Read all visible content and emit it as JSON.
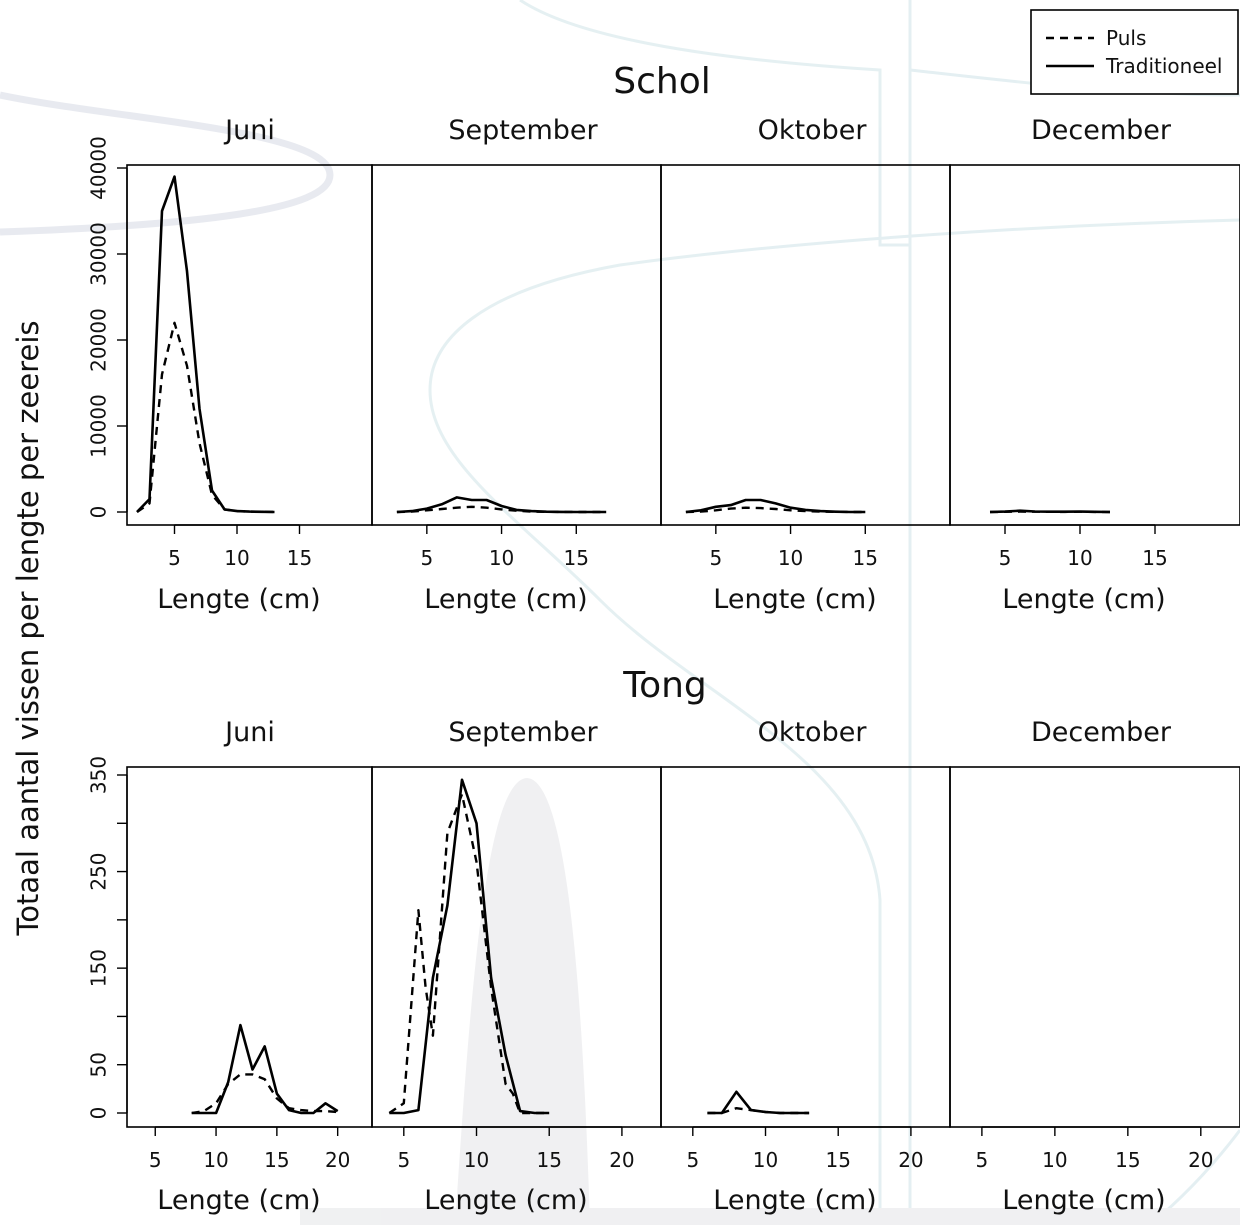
{
  "y_label": "Totaal aantal vissen per lengte per  zeereis",
  "legend": [
    {
      "name": "Puls",
      "style": "dashed"
    },
    {
      "name": "Traditioneel",
      "style": "solid"
    }
  ],
  "groups": [
    {
      "title": "Schol",
      "x_label": "Lengte (cm)",
      "xlim": [
        2,
        20
      ],
      "ylim": [
        0,
        40000
      ],
      "x_ticks": [
        5,
        10,
        15
      ],
      "y_ticks": [
        0,
        10000,
        20000,
        30000,
        40000
      ],
      "y_tick_labels": [
        "0",
        "10000",
        "20000",
        "30000",
        "40000"
      ]
    },
    {
      "title": "Tong",
      "x_label": "Lengte (cm)",
      "xlim": [
        3.5,
        22
      ],
      "ylim": [
        0,
        350
      ],
      "x_ticks": [
        5,
        10,
        15,
        20
      ],
      "y_ticks": [
        0,
        50,
        100,
        150,
        200,
        250,
        300,
        350
      ],
      "y_tick_labels": [
        "0",
        "50",
        "",
        "150",
        "",
        "250",
        "",
        "350"
      ]
    }
  ],
  "chart_data": [
    {
      "type": "line",
      "title": "Schol",
      "xlabel": "Lengte (cm)",
      "ylabel": "Totaal aantal vissen per lengte per  zeereis",
      "ylim": [
        0,
        40000
      ],
      "panels": [
        {
          "title": "Juni",
          "series": [
            {
              "name": "Puls",
              "x": [
                2,
                3,
                4,
                5,
                6,
                7,
                8,
                9,
                10,
                11,
                12,
                13
              ],
              "y": [
                0,
                1000,
                16000,
                22000,
                17000,
                8000,
                2000,
                300,
                100,
                50,
                20,
                0
              ]
            },
            {
              "name": "Traditioneel",
              "x": [
                2,
                3,
                4,
                5,
                6,
                7,
                8,
                9,
                10,
                11,
                12,
                13
              ],
              "y": [
                0,
                1500,
                35000,
                39000,
                28000,
                12000,
                2500,
                300,
                100,
                50,
                20,
                0
              ]
            }
          ]
        },
        {
          "title": "September",
          "series": [
            {
              "name": "Puls",
              "x": [
                3,
                4,
                5,
                6,
                7,
                8,
                9,
                10,
                11,
                12,
                13,
                14,
                15,
                16,
                17
              ],
              "y": [
                0,
                50,
                200,
                350,
                500,
                600,
                500,
                300,
                150,
                50,
                20,
                10,
                5,
                0,
                0
              ]
            },
            {
              "name": "Traditioneel",
              "x": [
                3,
                4,
                5,
                6,
                7,
                8,
                9,
                10,
                11,
                12,
                13,
                14,
                15,
                16,
                17
              ],
              "y": [
                0,
                100,
                400,
                900,
                1700,
                1400,
                1400,
                700,
                250,
                100,
                30,
                10,
                5,
                0,
                0
              ]
            }
          ]
        },
        {
          "title": "Oktober",
          "series": [
            {
              "name": "Puls",
              "x": [
                3,
                4,
                5,
                6,
                7,
                8,
                9,
                10,
                11,
                12,
                13,
                14,
                15
              ],
              "y": [
                0,
                50,
                200,
                400,
                500,
                450,
                350,
                200,
                100,
                50,
                20,
                0,
                0
              ]
            },
            {
              "name": "Traditioneel",
              "x": [
                3,
                4,
                5,
                6,
                7,
                8,
                9,
                10,
                11,
                12,
                13,
                14,
                15
              ],
              "y": [
                0,
                200,
                600,
                800,
                1400,
                1400,
                1000,
                500,
                250,
                100,
                30,
                0,
                0
              ]
            }
          ]
        },
        {
          "title": "December",
          "series": [
            {
              "name": "Puls",
              "x": [
                4,
                5,
                6,
                7,
                8,
                9,
                10,
                11,
                12
              ],
              "y": [
                0,
                20,
                50,
                30,
                20,
                10,
                30,
                10,
                0
              ]
            },
            {
              "name": "Traditioneel",
              "x": [
                4,
                5,
                6,
                7,
                8,
                9,
                10,
                11,
                12
              ],
              "y": [
                0,
                50,
                150,
                60,
                40,
                30,
                50,
                20,
                0
              ]
            }
          ]
        }
      ]
    },
    {
      "type": "line",
      "title": "Tong",
      "xlabel": "Lengte (cm)",
      "ylabel": "Totaal aantal vissen per lengte per  zeereis",
      "ylim": [
        0,
        350
      ],
      "panels": [
        {
          "title": "Juni",
          "series": [
            {
              "name": "Puls",
              "x": [
                8,
                9,
                10,
                11,
                12,
                13,
                14,
                15,
                16,
                17,
                18,
                19,
                20
              ],
              "y": [
                0,
                2,
                10,
                30,
                40,
                40,
                35,
                15,
                5,
                3,
                2,
                2,
                1
              ]
            },
            {
              "name": "Traditioneel",
              "x": [
                8,
                9,
                10,
                11,
                12,
                13,
                14,
                15,
                16,
                17,
                18,
                19,
                20
              ],
              "y": [
                0,
                0,
                0,
                32,
                91,
                45,
                69,
                20,
                3,
                0,
                0,
                10,
                2
              ]
            }
          ]
        },
        {
          "title": "September",
          "series": [
            {
              "name": "Puls",
              "x": [
                4,
                5,
                6,
                6.5,
                7,
                8,
                9,
                10,
                11,
                12,
                12.5,
                13,
                14,
                15
              ],
              "y": [
                0,
                10,
                210,
                130,
                80,
                290,
                330,
                260,
                130,
                30,
                20,
                0,
                0,
                0
              ]
            },
            {
              "name": "Traditioneel",
              "x": [
                4,
                5,
                6,
                7,
                8,
                9,
                10,
                11,
                12,
                13,
                14,
                15
              ],
              "y": [
                0,
                0,
                3,
                140,
                215,
                345,
                300,
                140,
                60,
                2,
                0,
                0
              ]
            }
          ]
        },
        {
          "title": "Oktober",
          "series": [
            {
              "name": "Puls",
              "x": [
                6,
                7,
                8,
                9,
                10,
                11,
                12,
                13
              ],
              "y": [
                0,
                0,
                5,
                3,
                1,
                0,
                0,
                0
              ]
            },
            {
              "name": "Traditioneel",
              "x": [
                6,
                7,
                8,
                9,
                10,
                11,
                12,
                13
              ],
              "y": [
                0,
                0,
                22,
                3,
                1,
                0,
                0,
                0
              ]
            }
          ]
        },
        {
          "title": "December",
          "series": []
        }
      ]
    }
  ]
}
